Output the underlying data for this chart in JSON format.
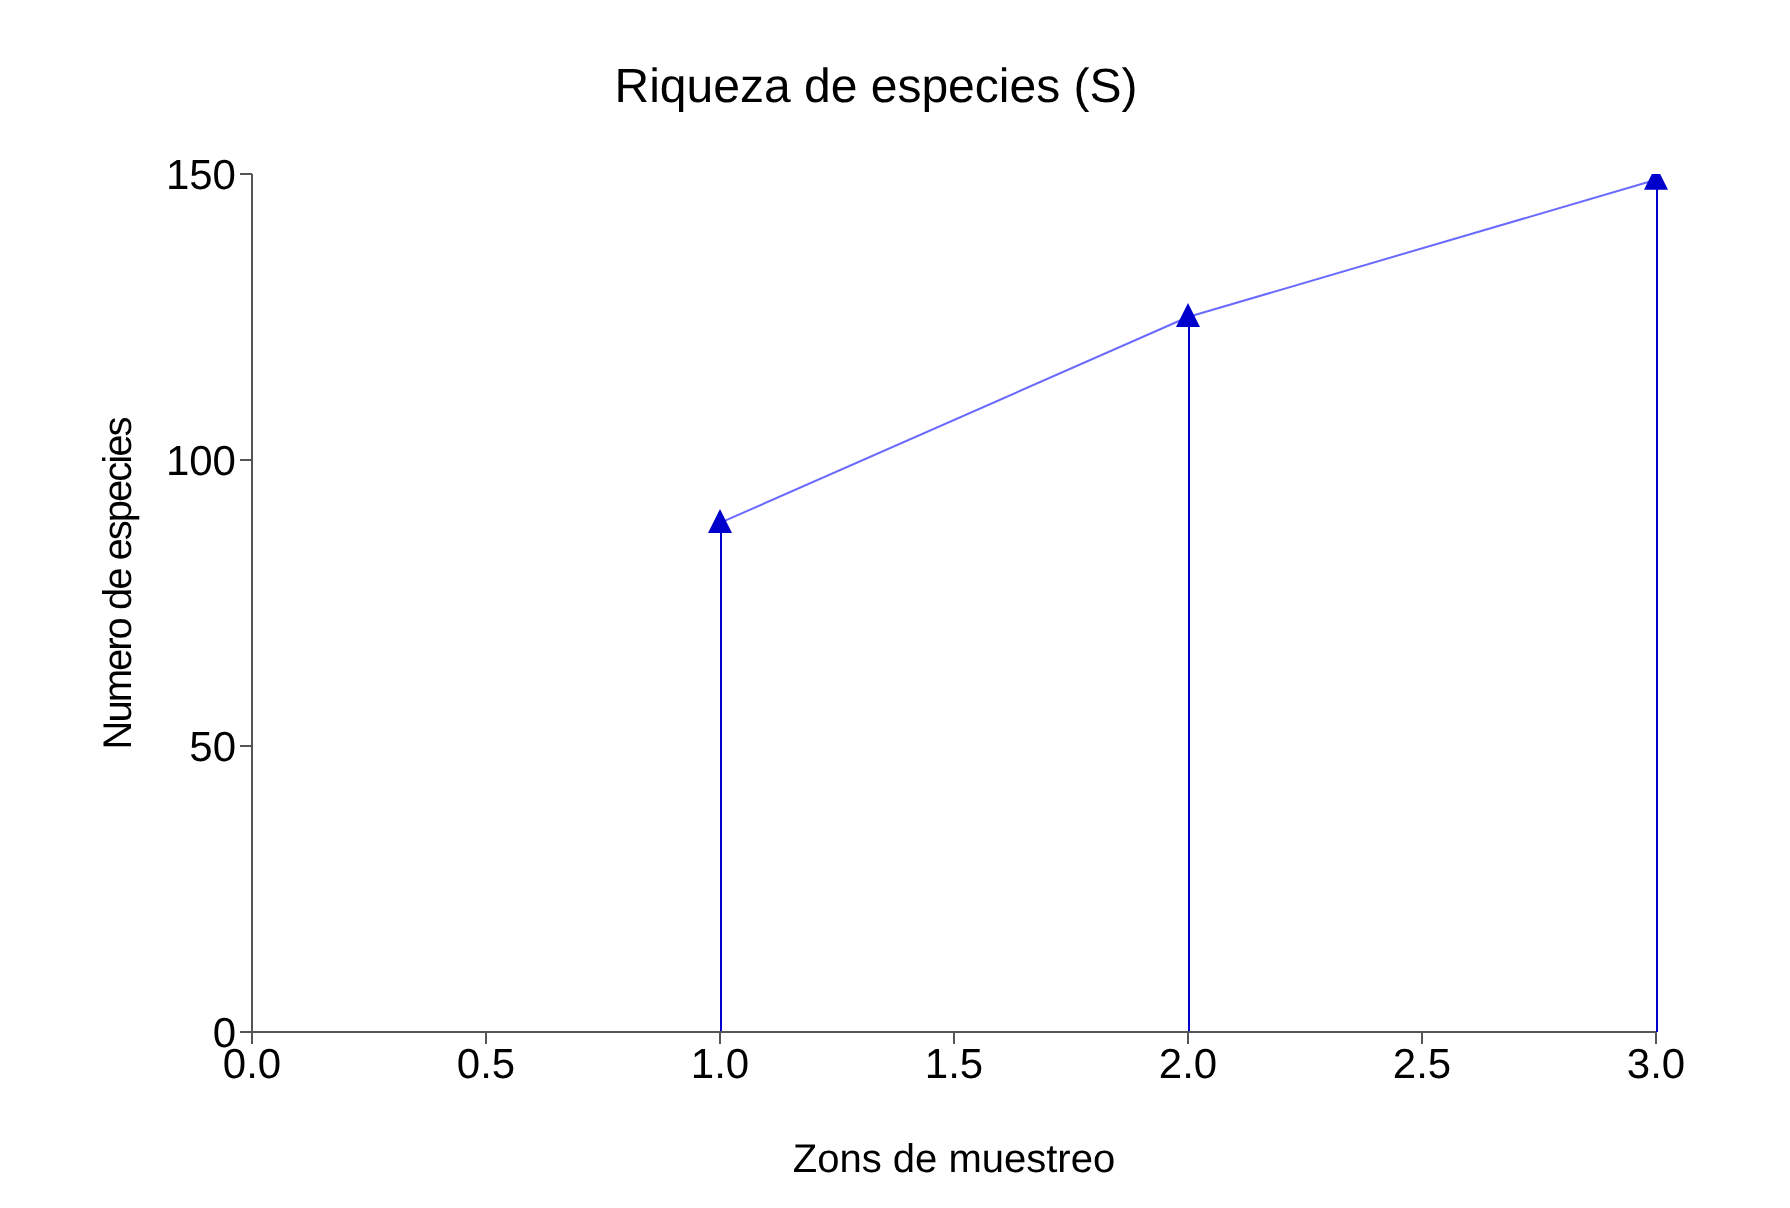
{
  "chart_data": {
    "type": "line",
    "title": "Riqueza de especies (S)",
    "xlabel": "Zons de muestreo",
    "ylabel": "Numero de especies",
    "x": [
      1,
      2,
      3
    ],
    "series": [
      {
        "color": "#6a6aff",
        "values": [
          89,
          125,
          149
        ],
        "marker": "none"
      },
      {
        "type": "lollipop",
        "color": "#0000cc",
        "values": [
          89,
          125,
          149
        ],
        "marker": "triangle"
      }
    ],
    "xlim": [
      0,
      3
    ],
    "xticks": [
      {
        "value": 0,
        "label": "0.0"
      },
      {
        "value": 0.5,
        "label": "0.5"
      },
      {
        "value": 1,
        "label": "1.0"
      },
      {
        "value": 1.5,
        "label": "1.5"
      },
      {
        "value": 2,
        "label": "2.0"
      },
      {
        "value": 2.5,
        "label": "2.5"
      },
      {
        "value": 3,
        "label": "3.0"
      }
    ],
    "ylim": [
      0,
      150
    ],
    "yticks": [
      0,
      50,
      100,
      150
    ],
    "grid": false,
    "legend": false
  }
}
